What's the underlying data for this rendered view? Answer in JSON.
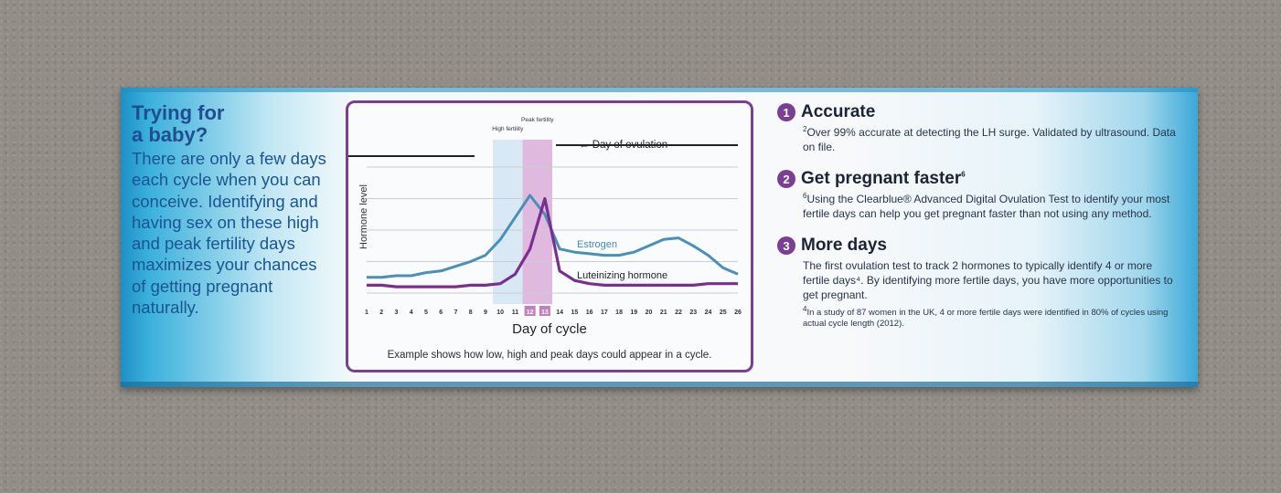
{
  "left": {
    "title_line1": "Trying for",
    "title_line2": "a baby?",
    "body": "There are only a few days each cycle when you can conceive.  Identifying and having sex on these high and peak fertility days maximizes your chances of getting pregnant naturally."
  },
  "chart": {
    "high_fertility_label": "High fertility",
    "peak_fertility_label": "Peak fertility",
    "ovulation_label": "Day of ovulation",
    "ylabel": "Hormone level",
    "xlabel": "Day of cycle",
    "estrogen_label": "Estrogen",
    "lh_label": "Luteinizing hormone",
    "caption": "Example shows how low, high and peak days could appear in a cycle."
  },
  "chart_data": {
    "type": "line",
    "x": [
      1,
      2,
      3,
      4,
      5,
      6,
      7,
      8,
      9,
      10,
      11,
      12,
      13,
      14,
      15,
      16,
      17,
      18,
      19,
      20,
      21,
      22,
      23,
      24,
      25,
      26
    ],
    "tick_labels": [
      "1",
      "2",
      "3",
      "4",
      "5",
      "6",
      "7",
      "8",
      "9",
      "10",
      "11",
      "12",
      "13",
      "14",
      "15",
      "16",
      "17",
      "18",
      "19",
      "20",
      "21",
      "22",
      "23",
      "24",
      "25",
      "26"
    ],
    "series": [
      {
        "name": "Estrogen",
        "color": "#4a8fb8",
        "values": [
          1.0,
          1.0,
          1.1,
          1.1,
          1.3,
          1.4,
          1.7,
          2.0,
          2.4,
          3.4,
          4.8,
          6.2,
          5.0,
          2.8,
          2.6,
          2.5,
          2.4,
          2.4,
          2.6,
          3.0,
          3.4,
          3.5,
          3.0,
          2.4,
          1.6,
          1.2
        ]
      },
      {
        "name": "Luteinizing hormone",
        "color": "#7a2f8f",
        "values": [
          0.5,
          0.5,
          0.4,
          0.4,
          0.4,
          0.4,
          0.4,
          0.5,
          0.5,
          0.6,
          1.2,
          2.8,
          6.0,
          1.4,
          0.8,
          0.6,
          0.5,
          0.5,
          0.5,
          0.5,
          0.5,
          0.5,
          0.5,
          0.6,
          0.6,
          0.6
        ]
      }
    ],
    "highlight_days": {
      "high_fertility": [
        10,
        11
      ],
      "peak_fertility": [
        12,
        13
      ]
    },
    "ovulation_day": 13,
    "ylim": [
      0,
      8
    ],
    "grid": true,
    "colors": {
      "high_band": "#cfe5f2",
      "peak_band": "#d9a9d6",
      "tick_highlight": "#c27fc0"
    }
  },
  "features": [
    {
      "number": "1",
      "title": "Accurate",
      "title_sup": "",
      "text_sup": "2",
      "text": "Over 99% accurate at detecting the LH surge. Validated by ultrasound. Data on file.",
      "note": ""
    },
    {
      "number": "2",
      "title": "Get pregnant faster",
      "title_sup": "6",
      "text_sup": "6",
      "text": "Using the Clearblue® Advanced Digital Ovulation Test to identify your most fertile days can help you get pregnant faster than not using any method.",
      "note": ""
    },
    {
      "number": "3",
      "title": "More days",
      "title_sup": "",
      "text_sup": "",
      "text": "The first ovulation test to track 2 hormones to typically identify 4 or more fertile days⁴. By identifying more fertile days, you have more opportunities to get pregnant.",
      "note_sup": "4",
      "note": "In a study of 87 women in the UK, 4 or more fertile days were identified in 80% of cycles using actual cycle length (2012)."
    }
  ],
  "colors": {
    "brand_blue": "#1d4f8f",
    "brand_purple": "#7a3f91"
  }
}
